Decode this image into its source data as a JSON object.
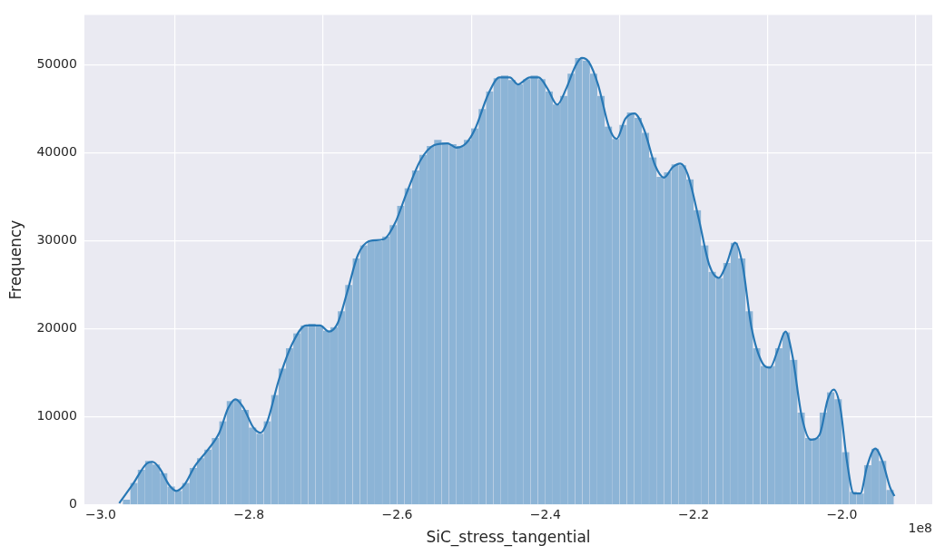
{
  "chart_data": {
    "type": "histogram",
    "xlabel": "SiC_stress_tangential",
    "ylabel": "Frequency",
    "bins": [
      -2.97,
      -2.96,
      -2.95,
      -2.94,
      -2.93,
      -2.92,
      -2.91,
      -2.9,
      -2.89,
      -2.88,
      -2.87,
      -2.86,
      -2.85,
      -2.84,
      -2.83,
      -2.82,
      -2.81,
      -2.8,
      -2.79,
      -2.78,
      -2.77,
      -2.76,
      -2.75,
      -2.74,
      -2.73,
      -2.72,
      -2.71,
      -2.7,
      -2.69,
      -2.68,
      -2.67,
      -2.66,
      -2.65,
      -2.64,
      -2.63,
      -2.62,
      -2.61,
      -2.6,
      -2.59,
      -2.58,
      -2.57,
      -2.56,
      -2.55,
      -2.54,
      -2.53,
      -2.52,
      -2.51,
      -2.5,
      -2.49,
      -2.48,
      -2.47,
      -2.46,
      -2.45,
      -2.44,
      -2.43,
      -2.42,
      -2.41,
      -2.4,
      -2.39,
      -2.38,
      -2.37,
      -2.36,
      -2.35,
      -2.34,
      -2.33,
      -2.32,
      -2.31,
      -2.3,
      -2.29,
      -2.28,
      -2.27,
      -2.26,
      -2.25,
      -2.24,
      -2.23,
      -2.22,
      -2.21,
      -2.2,
      -2.19,
      -2.18,
      -2.17,
      -2.16,
      -2.15,
      -2.14,
      -2.13,
      -2.12,
      -2.11,
      -2.1,
      -2.09,
      -2.08,
      -2.07,
      -2.06,
      -2.05,
      -2.04,
      -2.03,
      -2.02,
      -2.01,
      -2.0,
      -1.99,
      -1.98,
      -1.97,
      -1.96,
      -1.95,
      -1.94,
      -1.93
    ],
    "values": [
      600,
      2500,
      4000,
      5000,
      4600,
      3600,
      2100,
      1600,
      2500,
      4200,
      5300,
      6300,
      7600,
      9500,
      11800,
      12000,
      10800,
      8800,
      8100,
      9500,
      12500,
      15500,
      17800,
      19500,
      20400,
      20600,
      20400,
      19800,
      20200,
      22000,
      25000,
      28000,
      29500,
      30100,
      30000,
      30500,
      31800,
      34000,
      36000,
      38000,
      39800,
      40800,
      41500,
      41200,
      41000,
      40800,
      41500,
      42800,
      45000,
      47000,
      48500,
      48800,
      48300,
      47800,
      48400,
      48800,
      48400,
      47000,
      45500,
      46500,
      49000,
      50800,
      50500,
      49000,
      46500,
      43000,
      41600,
      43200,
      44600,
      44000,
      42300,
      39500,
      37300,
      37800,
      38700,
      38600,
      37000,
      33500,
      29500,
      26500,
      25800,
      27500,
      29800,
      28000,
      22000,
      17800,
      15800,
      15800,
      17800,
      19600,
      16500,
      10500,
      7600,
      7600,
      10500,
      12800,
      12000,
      6000,
      1500,
      1300,
      4500,
      6400,
      5000,
      1700
    ],
    "color": "#8cb4d6",
    "series": [
      {
        "type": "line",
        "color": "#2878b5",
        "x": [
          -2.975,
          -2.957,
          -2.938,
          -2.93,
          -2.92,
          -2.908,
          -2.898,
          -2.887,
          -2.873,
          -2.856,
          -2.84,
          -2.828,
          -2.818,
          -2.807,
          -2.794,
          -2.784,
          -2.775,
          -2.76,
          -2.741,
          -2.723,
          -2.704,
          -2.692,
          -2.68,
          -2.667,
          -2.653,
          -2.637,
          -2.618,
          -2.603,
          -2.587,
          -2.569,
          -2.55,
          -2.532,
          -2.52,
          -2.507,
          -2.495,
          -2.477,
          -2.462,
          -2.448,
          -2.437,
          -2.421,
          -2.409,
          -2.397,
          -2.384,
          -2.372,
          -2.36,
          -2.351,
          -2.341,
          -2.329,
          -2.314,
          -2.304,
          -2.292,
          -2.28,
          -2.267,
          -2.252,
          -2.24,
          -2.228,
          -2.218,
          -2.208,
          -2.193,
          -2.179,
          -2.166,
          -2.156,
          -2.144,
          -2.134,
          -2.122,
          -2.107,
          -2.097,
          -2.086,
          -2.076,
          -2.067,
          -2.054,
          -2.042,
          -2.03,
          -2.019,
          -2.011,
          -2.002,
          -1.993,
          -1.984,
          -1.975,
          -1.966,
          -1.955,
          -1.945,
          -1.935,
          -1.929
        ],
        "values": [
          200,
          2300,
          4700,
          4900,
          4100,
          2300,
          1600,
          2300,
          4400,
          6200,
          8200,
          11000,
          12000,
          11000,
          8800,
          8200,
          9500,
          14100,
          18400,
          20400,
          20400,
          19700,
          20700,
          24300,
          28400,
          30000,
          30200,
          32000,
          35500,
          39100,
          40900,
          41100,
          40600,
          41100,
          42700,
          46700,
          48600,
          48600,
          47800,
          48600,
          48600,
          47300,
          45500,
          47300,
          49800,
          50800,
          50300,
          47800,
          42900,
          41600,
          43900,
          44500,
          42700,
          38600,
          37200,
          38400,
          38800,
          37600,
          32500,
          27300,
          25800,
          27300,
          29800,
          27300,
          20200,
          16100,
          15600,
          17700,
          19700,
          17100,
          10000,
          7400,
          8000,
          12000,
          13100,
          11000,
          4900,
          1300,
          1300,
          4400,
          6400,
          4900,
          2000,
          1000
        ]
      }
    ],
    "xlim": [
      -3.022,
      -1.878
    ],
    "xticks": [
      {
        "value": -3.0,
        "label": "−3.0"
      },
      {
        "value": -2.8,
        "label": "−2.8"
      },
      {
        "value": -2.6,
        "label": "−2.6"
      },
      {
        "value": -2.4,
        "label": "−2.4"
      },
      {
        "value": -2.2,
        "label": "−2.2"
      },
      {
        "value": -2.0,
        "label": "−2.0"
      }
    ],
    "ylim": [
      0,
      55700
    ],
    "yticks": [
      0,
      10000,
      20000,
      30000,
      40000,
      50000
    ],
    "grid": true,
    "annotations": [
      "1e8"
    ]
  }
}
